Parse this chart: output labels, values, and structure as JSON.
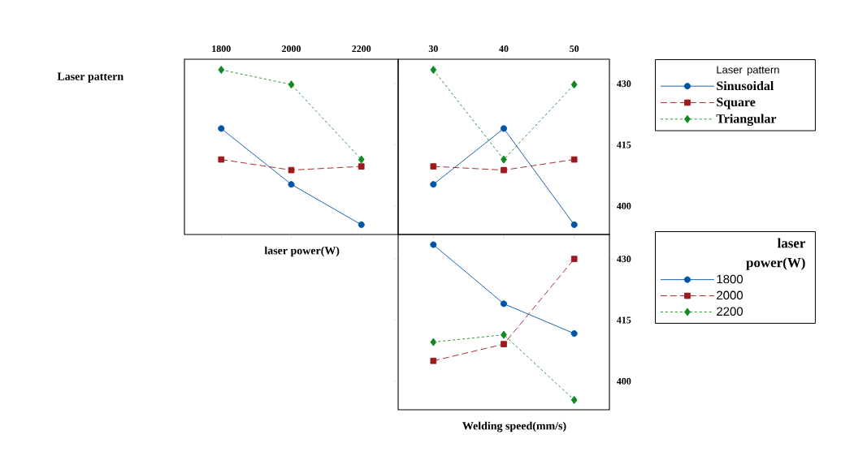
{
  "chart_data": [
    {
      "type": "line",
      "xlabel": "laser power(W)",
      "ylabel": "Laser pattern",
      "x": [
        1800,
        2000,
        2200
      ],
      "xlim": [
        1695,
        2305
      ],
      "xticks": [
        1800,
        2000,
        2200
      ],
      "ylim": [
        393,
        436
      ],
      "yticks": [
        400,
        415,
        430
      ],
      "tick_labels": "x",
      "series": [
        {
          "color": "#0054a6",
          "marker": "circle",
          "line_style": "solid",
          "values": [
            419,
            405.3,
            395.4
          ]
        },
        {
          "color": "#9c1a1a",
          "marker": "square",
          "line_style": "dashed",
          "values": [
            411.4,
            408.8,
            409.7
          ]
        },
        {
          "color": "#108a20",
          "marker": "diamond",
          "line_style": "dotted",
          "values": [
            433.4,
            429.8,
            411.4
          ]
        }
      ]
    },
    {
      "type": "line",
      "legend": "right",
      "legend_title": "Laser pattern",
      "x": [
        30,
        40,
        50
      ],
      "xlim": [
        25,
        55
      ],
      "xticks": [
        30,
        40,
        50
      ],
      "ylim": [
        393,
        436
      ],
      "yticks": [
        400,
        415,
        430
      ],
      "series": [
        {
          "name": "Sinusoidal",
          "color": "#0054a6",
          "marker": "circle",
          "line_style": "solid",
          "values": [
            405.3,
            419,
            395.4
          ]
        },
        {
          "name": "Square",
          "color": "#9c1a1a",
          "marker": "square",
          "line_style": "dashed",
          "values": [
            409.7,
            408.8,
            411.4
          ]
        },
        {
          "name": "Triangular",
          "color": "#108a20",
          "marker": "diamond",
          "line_style": "dotted",
          "values": [
            433.4,
            411.4,
            429.8
          ]
        }
      ]
    },
    {
      "type": "line",
      "legend": "right",
      "legend_title": "laser power(W)",
      "xlabel": "Welding speed(mm/s)",
      "x": [
        30,
        40,
        50
      ],
      "xlim": [
        25,
        55
      ],
      "xticks": [
        30,
        40,
        50
      ],
      "ylim": [
        393,
        436
      ],
      "yticks": [
        400,
        415,
        430
      ],
      "tick_labels": "y",
      "series": [
        {
          "name": "1800",
          "color": "#0054a6",
          "marker": "circle",
          "line_style": "solid",
          "values": [
            433.5,
            419,
            411.7
          ]
        },
        {
          "name": "2000",
          "color": "#9c1a1a",
          "marker": "square",
          "line_style": "dashed",
          "values": [
            405,
            409.1,
            430
          ]
        },
        {
          "name": "2200",
          "color": "#108a20",
          "marker": "diamond",
          "line_style": "dotted",
          "values": [
            409.6,
            411.4,
            395.4
          ]
        }
      ]
    }
  ]
}
